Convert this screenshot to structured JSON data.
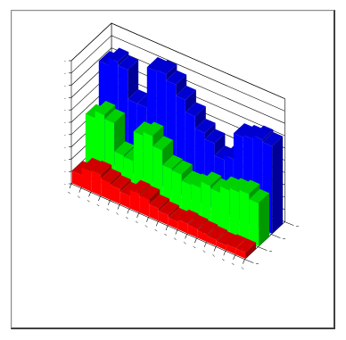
{
  "colors": {
    "background": "#ffffff",
    "frame_dark": "#404040",
    "frame_light": "#8c8c8c",
    "grid": "#000000"
  },
  "chart_data": {
    "type": "bar",
    "subtype": "3d-stacked-column-ribbons",
    "title": "",
    "xlabel": "",
    "ylabel": "",
    "grid": true,
    "legend": "none",
    "categories": [
      "1",
      "2",
      "3",
      "4",
      "5",
      "6",
      "7",
      "8",
      "9",
      "10",
      "11",
      "12",
      "13",
      "14",
      "15",
      "16",
      "17",
      "18"
    ],
    "ylim": [
      0,
      10
    ],
    "series": [
      {
        "color": "#ff0000",
        "values": [
          1.0,
          1.6,
          1.7,
          1.4,
          1.2,
          1.0,
          1.5,
          1.4,
          1.0,
          0.8,
          0.6,
          0.8,
          0.7,
          0.6,
          0.5,
          0.4,
          0.5,
          0.5
        ]
      },
      {
        "color": "#00ff00",
        "values": [
          4.6,
          5.2,
          4.9,
          2.6,
          2.5,
          4.9,
          5.2,
          4.4,
          3.2,
          3.1,
          2.6,
          2.7,
          3.2,
          3.0,
          3.5,
          3.7,
          3.9,
          3.5
        ]
      },
      {
        "color": "#0000ff",
        "values": [
          7.9,
          8.5,
          8.2,
          5.8,
          5.8,
          9.1,
          9.2,
          8.7,
          7.8,
          6.8,
          5.8,
          5.3,
          4.3,
          4.7,
          6.8,
          7.0,
          7.3,
          7.1
        ]
      }
    ]
  }
}
